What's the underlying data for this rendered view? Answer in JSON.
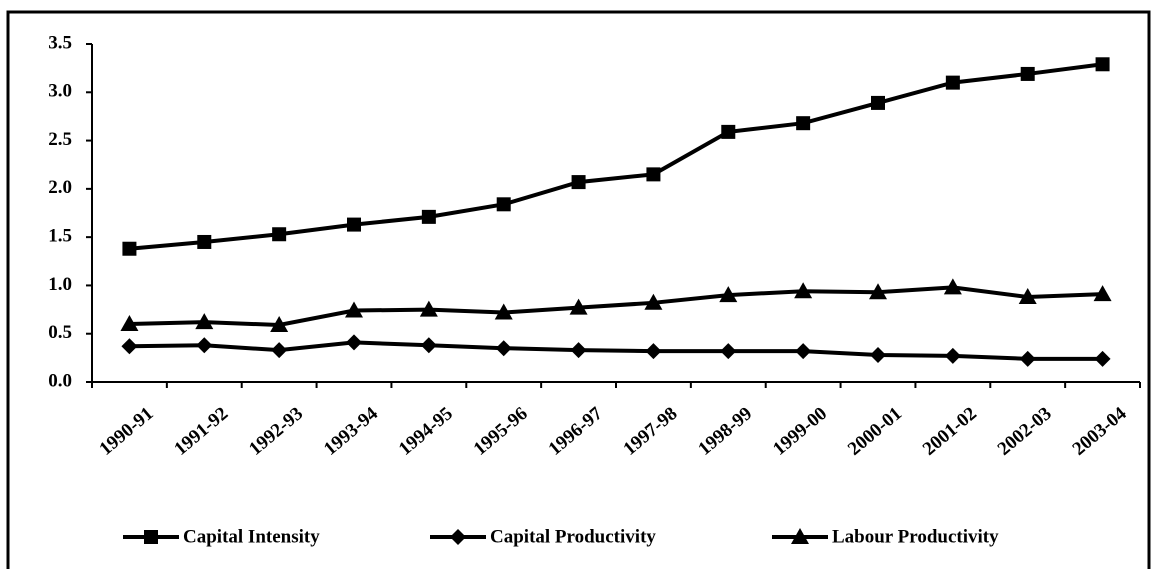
{
  "chart_data": {
    "type": "line",
    "categories": [
      "1990-91",
      "1991-92",
      "1992-93",
      "1993-94",
      "1994-95",
      "1995-96",
      "1996-97",
      "1997-98",
      "1998-99",
      "1999-00",
      "2000-01",
      "2001-02",
      "2002-03",
      "2003-04"
    ],
    "series": [
      {
        "name": "Capital Intensity",
        "color": "#000000",
        "marker": "square",
        "values": [
          1.38,
          1.45,
          1.53,
          1.63,
          1.71,
          1.84,
          2.07,
          2.15,
          2.59,
          2.68,
          2.89,
          3.1,
          3.19,
          3.29
        ]
      },
      {
        "name": "Capital Productivity",
        "color": "#000000",
        "marker": "diamond",
        "values": [
          0.37,
          0.38,
          0.33,
          0.41,
          0.38,
          0.35,
          0.33,
          0.32,
          0.32,
          0.32,
          0.28,
          0.27,
          0.24,
          0.24
        ]
      },
      {
        "name": "Labour Productivity",
        "color": "#000000",
        "marker": "triangle",
        "values": [
          0.6,
          0.62,
          0.59,
          0.74,
          0.75,
          0.72,
          0.77,
          0.82,
          0.9,
          0.94,
          0.93,
          0.98,
          0.88,
          0.91
        ]
      }
    ],
    "ylim": [
      0,
      3.5
    ],
    "yticks": [
      {
        "value": 0,
        "label": "0.0"
      },
      0.5,
      {
        "value": 1,
        "label": "1.0"
      },
      1.5,
      {
        "value": 2,
        "label": "2.0"
      },
      2.5,
      {
        "value": 3,
        "label": "3.0"
      },
      3.5
    ],
    "grid": false,
    "legend": "bottom"
  }
}
